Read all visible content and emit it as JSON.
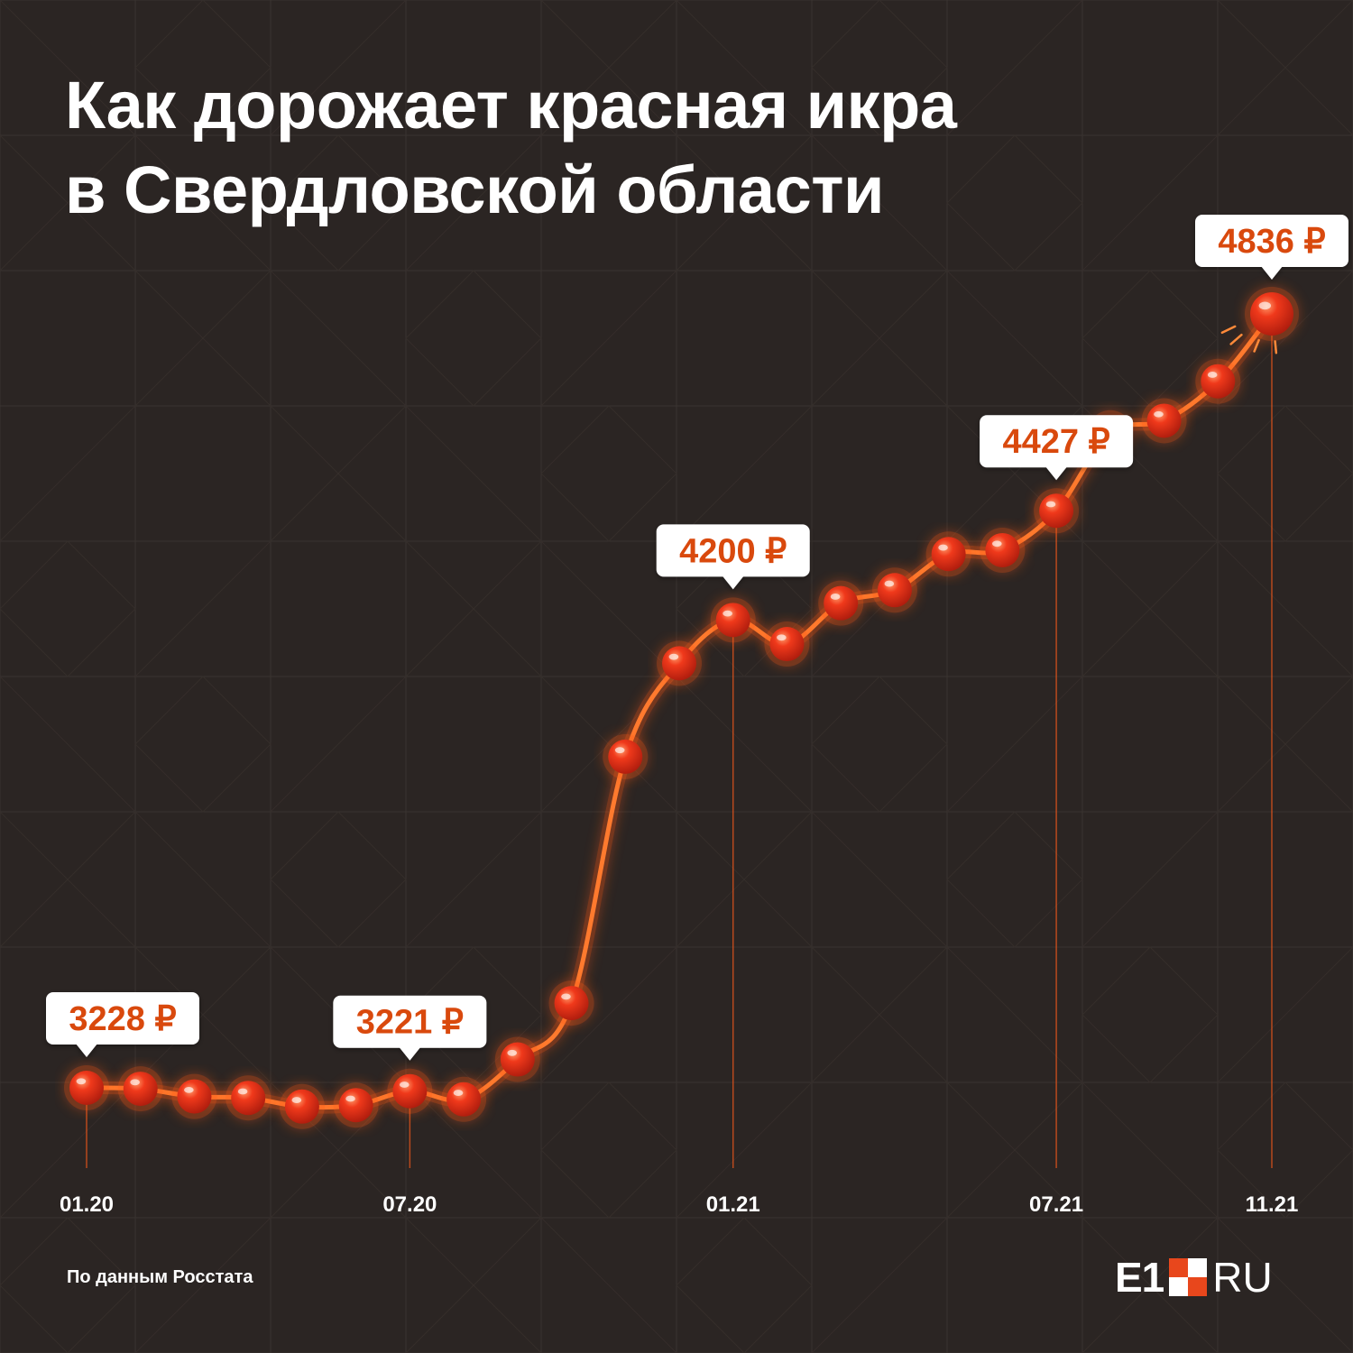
{
  "title": {
    "line1": "Как дорожает красная икра",
    "line2": "в Свердловской области"
  },
  "source": "По данным Росстата",
  "logo": {
    "left": "E1",
    "right": "RU"
  },
  "colors": {
    "background": "#2b2523",
    "line": "#ff6a1f",
    "dot": "#e8361c",
    "label_text": "#d9480f",
    "label_bg": "#ffffff",
    "axis_text": "#ffffff"
  },
  "chart_data": {
    "type": "line",
    "title": "Как дорожает красная икра в Свердловской области",
    "xlabel": "",
    "ylabel": "",
    "ylim": [
      3100,
      5000
    ],
    "x": [
      "01.20",
      "02.20",
      "03.20",
      "04.20",
      "05.20",
      "06.20",
      "07.20",
      "08.20",
      "09.20",
      "10.20",
      "11.20",
      "12.20",
      "01.21",
      "02.21",
      "03.21",
      "04.21",
      "05.21",
      "06.21",
      "07.21",
      "08.21",
      "09.21",
      "10.21",
      "11.21"
    ],
    "values": [
      3228,
      3226,
      3210,
      3207,
      3189,
      3192,
      3221,
      3204,
      3287,
      3404,
      3916,
      4110,
      4200,
      4150,
      4235,
      4262,
      4337,
      4345,
      4427,
      4589,
      4614,
      4696,
      4836
    ],
    "tick_labels": [
      "01.20",
      "07.20",
      "01.21",
      "07.21",
      "11.21"
    ],
    "tick_indices": [
      0,
      6,
      12,
      18,
      22
    ],
    "annotations": [
      {
        "index": 0,
        "text": "3228 ₽"
      },
      {
        "index": 6,
        "text": "3221 ₽"
      },
      {
        "index": 12,
        "text": "4200 ₽"
      },
      {
        "index": 18,
        "text": "4427 ₽"
      },
      {
        "index": 22,
        "text": "4836 ₽"
      }
    ],
    "grid": false,
    "legend": "none"
  }
}
